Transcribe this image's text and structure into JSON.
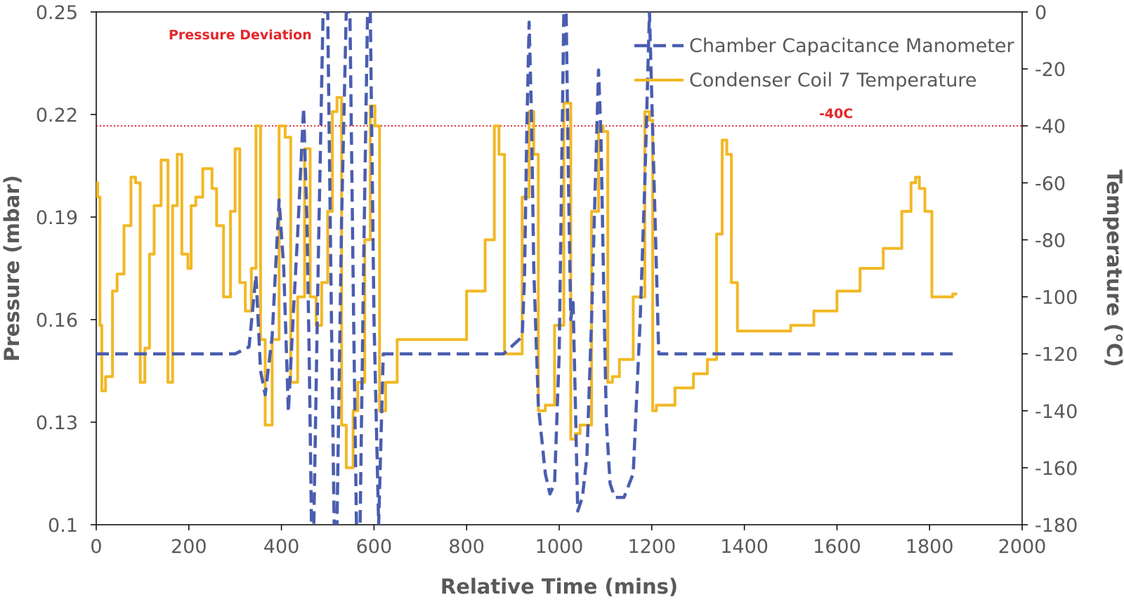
{
  "chart_data": {
    "type": "line",
    "xlabel": "Relative Time (mins)",
    "ylabel_left": "Pressure (mbar)",
    "ylabel_right": "Temperature (°C)",
    "xlim": [
      0,
      2000
    ],
    "ylim_left": [
      0.1,
      0.25
    ],
    "ylim_right": [
      -180,
      0
    ],
    "x_ticks": [
      "0",
      "200",
      "400",
      "600",
      "800",
      "1000",
      "1200",
      "1400",
      "1600",
      "1800",
      "2000"
    ],
    "y_left_ticks": [
      "0.1",
      "0.13",
      "0.16",
      "0.19",
      "0.22",
      "0.25"
    ],
    "y_right_ticks": [
      "0",
      "-20",
      "-40",
      "-60",
      "-80",
      "-100",
      "-120",
      "-140",
      "-160",
      "-180"
    ],
    "grid": false,
    "legend_position": "top-right",
    "colors": {
      "pressure": "#4a5db0",
      "temperature": "#f2b824",
      "annotation": "#e3262b",
      "axis": "#000000",
      "text": "#595959"
    },
    "annotations": {
      "pressure_deviation": "Pressure Deviation",
      "threshold_label": "-40C",
      "threshold_temp": -40
    },
    "series": [
      {
        "name": "Chamber Capacitance Manometer",
        "axis": "left",
        "style": "dashed",
        "x": [
          0,
          100,
          200,
          240,
          280,
          300,
          330,
          345,
          355,
          365,
          380,
          395,
          405,
          415,
          425,
          435,
          448,
          455,
          460,
          465,
          470,
          480,
          490,
          500,
          508,
          514,
          520,
          530,
          540,
          548,
          556,
          562,
          570,
          578,
          586,
          592,
          600,
          610,
          620,
          640,
          700,
          800,
          880,
          920,
          925,
          930,
          935,
          940,
          945,
          955,
          970,
          980,
          990,
          1000,
          1005,
          1010,
          1015,
          1020,
          1025,
          1030,
          1035,
          1040,
          1050,
          1060,
          1070,
          1078,
          1085,
          1090,
          1096,
          1102,
          1110,
          1120,
          1140,
          1160,
          1175,
          1185,
          1195,
          1205,
          1215,
          1230,
          1400,
          1600,
          1800,
          1860
        ],
        "y": [
          0.15,
          0.15,
          0.15,
          0.15,
          0.15,
          0.15,
          0.152,
          0.173,
          0.145,
          0.138,
          0.155,
          0.195,
          0.175,
          0.133,
          0.16,
          0.185,
          0.222,
          0.19,
          0.15,
          0.1,
          0.1,
          0.18,
          0.25,
          0.25,
          0.16,
          0.1,
          0.1,
          0.19,
          0.25,
          0.25,
          0.16,
          0.1,
          0.1,
          0.18,
          0.25,
          0.25,
          0.16,
          0.1,
          0.15,
          0.15,
          0.15,
          0.15,
          0.15,
          0.155,
          0.172,
          0.215,
          0.247,
          0.22,
          0.175,
          0.135,
          0.115,
          0.109,
          0.112,
          0.15,
          0.2,
          0.25,
          0.25,
          0.2,
          0.16,
          0.165,
          0.135,
          0.104,
          0.108,
          0.12,
          0.16,
          0.2,
          0.233,
          0.215,
          0.17,
          0.13,
          0.112,
          0.108,
          0.108,
          0.115,
          0.16,
          0.2,
          0.25,
          0.2,
          0.15,
          0.15,
          0.15,
          0.15,
          0.15,
          0.15
        ]
      },
      {
        "name": "Condenser Coil 7 Temperature",
        "axis": "right",
        "style": "solid",
        "x": [
          0,
          3,
          8,
          12,
          20,
          35,
          45,
          60,
          75,
          85,
          95,
          105,
          115,
          125,
          140,
          155,
          165,
          175,
          185,
          198,
          205,
          215,
          230,
          250,
          260,
          275,
          290,
          300,
          310,
          322,
          335,
          345,
          355,
          365,
          380,
          395,
          408,
          420,
          435,
          450,
          462,
          475,
          487,
          500,
          510,
          520,
          530,
          540,
          555,
          565,
          580,
          592,
          602,
          612,
          625,
          650,
          700,
          750,
          800,
          840,
          860,
          870,
          882,
          895,
          920,
          935,
          945,
          955,
          970,
          990,
          1010,
          1025,
          1035,
          1045,
          1070,
          1085,
          1095,
          1105,
          1115,
          1130,
          1160,
          1185,
          1195,
          1202,
          1210,
          1222,
          1250,
          1290,
          1320,
          1340,
          1352,
          1362,
          1372,
          1385,
          1400,
          1450,
          1500,
          1550,
          1600,
          1650,
          1700,
          1740,
          1760,
          1770,
          1778,
          1790,
          1805,
          1830,
          1850,
          1860
        ],
        "y": [
          -60,
          -65,
          -110,
          -133,
          -128,
          -98,
          -92,
          -75,
          -58,
          -60,
          -130,
          -118,
          -85,
          -68,
          -52,
          -130,
          -68,
          -50,
          -85,
          -90,
          -68,
          -65,
          -55,
          -62,
          -75,
          -100,
          -70,
          -48,
          -95,
          -105,
          -90,
          -40,
          -115,
          -145,
          -115,
          -40,
          -44,
          -130,
          -100,
          -48,
          -100,
          -110,
          -95,
          -70,
          -35,
          -30,
          -145,
          -160,
          -140,
          -130,
          -80,
          -33,
          -40,
          -140,
          -130,
          -115,
          -115,
          -115,
          -98,
          -80,
          -40,
          -50,
          -120,
          -120,
          -65,
          -35,
          -50,
          -140,
          -138,
          -110,
          -32,
          -150,
          -148,
          -145,
          -70,
          -40,
          -42,
          -130,
          -128,
          -122,
          -100,
          -35,
          -38,
          -140,
          -138,
          -138,
          -132,
          -127,
          -122,
          -78,
          -45,
          -50,
          -95,
          -112,
          -112,
          -112,
          -110,
          -105,
          -98,
          -90,
          -83,
          -70,
          -60,
          -58,
          -62,
          -70,
          -100,
          -100,
          -99,
          -99
        ]
      }
    ]
  }
}
